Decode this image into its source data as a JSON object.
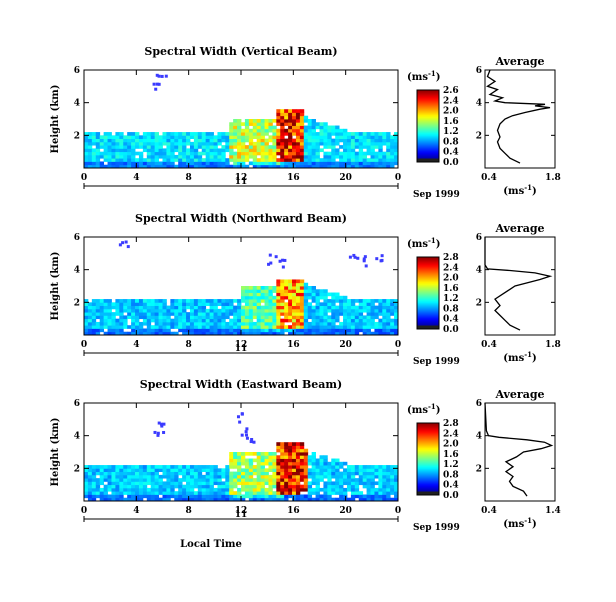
{
  "chart_data": [
    {
      "type": "heatmap",
      "title": "Spectral Width (Vertical Beam)",
      "ylabel": "Height (km)",
      "x_ticks": [
        "0",
        "4",
        "8",
        "12",
        "16",
        "20",
        "0"
      ],
      "y_ticks": [
        "6",
        "4",
        "2"
      ],
      "ylim": [
        0,
        6
      ],
      "day_label": "11",
      "date_label": "Sep 1999",
      "colorbar": {
        "unit_label": "(ms",
        "unit_sup": "-1",
        "ticks": [
          "2.6",
          "2.4",
          "2.0",
          "1.6",
          "1.2",
          "0.8",
          "0.4",
          "0.0"
        ]
      },
      "average_profile": {
        "title": "Average",
        "xlabel": "(ms",
        "xlabel_sup": "-1",
        "x_ticks": [
          "0.4",
          "1.8"
        ],
        "xlim": [
          0.4,
          1.8
        ],
        "y_ticks": [
          "6",
          "4",
          "2"
        ],
        "points": [
          [
            1.1,
            0.3
          ],
          [
            0.9,
            0.6
          ],
          [
            0.8,
            0.9
          ],
          [
            0.7,
            1.2
          ],
          [
            0.65,
            1.6
          ],
          [
            0.7,
            1.9
          ],
          [
            0.65,
            2.3
          ],
          [
            0.7,
            2.7
          ],
          [
            0.8,
            3.0
          ],
          [
            0.95,
            3.2
          ],
          [
            1.2,
            3.4
          ],
          [
            1.5,
            3.6
          ],
          [
            1.7,
            3.7
          ],
          [
            1.4,
            3.8
          ],
          [
            1.6,
            3.9
          ],
          [
            0.8,
            4.0
          ],
          [
            0.6,
            4.1
          ],
          [
            0.75,
            4.3
          ],
          [
            0.5,
            4.5
          ],
          [
            0.65,
            4.8
          ],
          [
            0.45,
            5.0
          ],
          [
            0.6,
            5.3
          ],
          [
            0.45,
            5.6
          ],
          [
            0.5,
            6.0
          ]
        ]
      },
      "series": [
        {
          "name": "",
          "t0": 0,
          "t1": 24,
          "h0": 0.3,
          "h1": 2.2,
          "value": 0.8
        },
        {
          "name": "",
          "t0": 11,
          "t1": 15,
          "h0": 0.3,
          "h1": 3.0,
          "value": 1.6
        },
        {
          "name": "",
          "t0": 14.5,
          "t1": 16.5,
          "h0": 0.5,
          "h1": 3.5,
          "value": 2.4
        }
      ]
    },
    {
      "type": "heatmap",
      "title": "Spectral Width (Northward Beam)",
      "ylabel": "Height (km)",
      "x_ticks": [
        "0",
        "4",
        "8",
        "12",
        "16",
        "20",
        "0"
      ],
      "y_ticks": [
        "6",
        "4",
        "2"
      ],
      "ylim": [
        0,
        6
      ],
      "day_label": "11",
      "date_label": "Sep 1999",
      "colorbar": {
        "unit_label": "(ms",
        "unit_sup": "-1",
        "ticks": [
          "2.8",
          "2.4",
          "2.0",
          "1.6",
          "1.2",
          "0.8",
          "0.4",
          "0.0"
        ]
      },
      "average_profile": {
        "title": "Average",
        "xlabel": "(ms",
        "xlabel_sup": "-1",
        "x_ticks": [
          "0.4",
          "1.8"
        ],
        "xlim": [
          0.4,
          1.8
        ],
        "y_ticks": [
          "6",
          "4",
          "2"
        ],
        "points": [
          [
            1.1,
            0.3
          ],
          [
            0.9,
            0.6
          ],
          [
            0.8,
            0.9
          ],
          [
            0.7,
            1.2
          ],
          [
            0.6,
            1.5
          ],
          [
            0.7,
            1.8
          ],
          [
            0.6,
            2.2
          ],
          [
            0.75,
            2.5
          ],
          [
            0.9,
            2.8
          ],
          [
            1.0,
            3.0
          ],
          [
            1.25,
            3.2
          ],
          [
            1.5,
            3.4
          ],
          [
            1.7,
            3.6
          ],
          [
            1.4,
            3.8
          ],
          [
            0.9,
            3.95
          ],
          [
            0.45,
            4.05
          ],
          [
            0.4,
            4.3
          ],
          [
            0.4,
            6.0
          ]
        ]
      },
      "series": [
        {
          "name": "",
          "t0": 0,
          "t1": 24,
          "h0": 0.3,
          "h1": 2.2,
          "value": 0.6
        },
        {
          "name": "",
          "t0": 12,
          "t1": 16,
          "h0": 0.3,
          "h1": 3.0,
          "value": 1.4
        },
        {
          "name": "",
          "t0": 14.5,
          "t1": 16.5,
          "h0": 0.5,
          "h1": 3.4,
          "value": 2.2
        }
      ]
    },
    {
      "type": "heatmap",
      "title": "Spectral Width (Eastward Beam)",
      "ylabel": "Height (km)",
      "x_ticks": [
        "0",
        "4",
        "8",
        "12",
        "16",
        "20",
        "0"
      ],
      "y_ticks": [
        "6",
        "4",
        "2"
      ],
      "ylim": [
        0,
        6
      ],
      "day_label": "11",
      "date_label": "Sep 1999",
      "xlabel": "Local Time",
      "colorbar": {
        "unit_label": "(ms",
        "unit_sup": "-1",
        "ticks": [
          "2.8",
          "2.4",
          "2.0",
          "1.6",
          "1.2",
          "0.8",
          "0.4",
          "0.0"
        ]
      },
      "average_profile": {
        "title": "Average",
        "xlabel": "(ms",
        "xlabel_sup": "-1",
        "x_ticks": [
          "0.4",
          "1.4"
        ],
        "xlim": [
          0.4,
          1.4
        ],
        "y_ticks": [
          "6",
          "4",
          "2"
        ],
        "points": [
          [
            1.0,
            0.3
          ],
          [
            0.95,
            0.6
          ],
          [
            0.8,
            0.9
          ],
          [
            0.75,
            1.2
          ],
          [
            0.8,
            1.5
          ],
          [
            0.7,
            1.8
          ],
          [
            0.8,
            2.1
          ],
          [
            0.7,
            2.4
          ],
          [
            0.85,
            2.7
          ],
          [
            0.95,
            3.0
          ],
          [
            1.2,
            3.2
          ],
          [
            1.35,
            3.4
          ],
          [
            1.25,
            3.6
          ],
          [
            1.0,
            3.75
          ],
          [
            0.6,
            3.9
          ],
          [
            0.45,
            4.0
          ],
          [
            0.42,
            4.3
          ],
          [
            0.4,
            6.0
          ]
        ]
      },
      "series": [
        {
          "name": "",
          "t0": 0,
          "t1": 24,
          "h0": 0.3,
          "h1": 2.2,
          "value": 0.8
        },
        {
          "name": "",
          "t0": 11,
          "t1": 15,
          "h0": 0.3,
          "h1": 3.0,
          "value": 1.6
        },
        {
          "name": "",
          "t0": 14.5,
          "t1": 17,
          "h0": 0.5,
          "h1": 3.6,
          "value": 2.6
        }
      ]
    }
  ]
}
